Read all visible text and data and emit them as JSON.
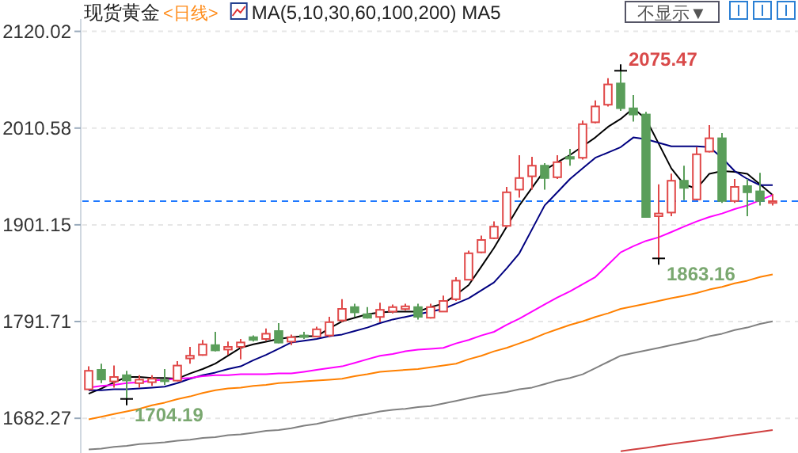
{
  "chart_data": {
    "type": "candlestick",
    "title": "现货黄金",
    "subtitle": "<日线>",
    "categories": [
      null,
      null,
      null,
      null,
      null,
      null,
      null,
      null,
      null,
      null,
      null,
      null,
      null,
      null,
      null,
      null,
      null,
      null,
      null,
      null,
      null,
      null,
      null,
      null,
      null,
      null,
      null,
      null,
      null,
      null,
      null,
      null,
      null,
      null,
      null,
      null,
      null,
      null,
      null,
      null,
      null,
      null,
      null,
      null,
      null,
      null,
      null,
      null,
      null,
      null,
      null,
      null,
      null,
      null,
      null
    ],
    "ohlc": [
      [
        1715,
        1741,
        1714,
        1736
      ],
      [
        1737,
        1744,
        1722,
        1726
      ],
      [
        1724,
        1742,
        1717,
        1729
      ],
      [
        1731,
        1736,
        1704.19,
        1725
      ],
      [
        1722,
        1731,
        1717,
        1726
      ],
      [
        1723,
        1731,
        1719,
        1727
      ],
      [
        1726,
        1738,
        1720,
        1725
      ],
      [
        1725,
        1747,
        1724,
        1742
      ],
      [
        1750,
        1763,
        1744,
        1753
      ],
      [
        1754,
        1771,
        1753,
        1766
      ],
      [
        1765,
        1780,
        1758,
        1759
      ],
      [
        1760,
        1769,
        1754,
        1763
      ],
      [
        1763,
        1772,
        1749,
        1768
      ],
      [
        1774,
        1776,
        1769,
        1771
      ],
      [
        1772,
        1784,
        1770,
        1778
      ],
      [
        1781,
        1790,
        1767,
        1768
      ],
      [
        1769,
        1777,
        1765,
        1774
      ],
      [
        1776,
        1780,
        1772,
        1775
      ],
      [
        1775,
        1786,
        1774,
        1783
      ],
      [
        1776,
        1797,
        1774,
        1791
      ],
      [
        1793,
        1817,
        1791,
        1806
      ],
      [
        1808,
        1812,
        1797,
        1802
      ],
      [
        1800,
        1808,
        1795,
        1796
      ],
      [
        1797,
        1813,
        1791,
        1805
      ],
      [
        1803,
        1811,
        1801,
        1808
      ],
      [
        1806,
        1812,
        1804,
        1809
      ],
      [
        1808,
        1812,
        1794,
        1797
      ],
      [
        1796,
        1812,
        1795,
        1808
      ],
      [
        1803,
        1821,
        1803,
        1815
      ],
      [
        1817,
        1842,
        1815,
        1838
      ],
      [
        1839,
        1872,
        1839,
        1869
      ],
      [
        1870,
        1889,
        1869,
        1884
      ],
      [
        1886,
        1905,
        1885,
        1899
      ],
      [
        1900,
        1944,
        1898,
        1938
      ],
      [
        1941,
        1980,
        1932,
        1954
      ],
      [
        1956,
        1978,
        1941,
        1968
      ],
      [
        1968,
        1971,
        1941,
        1954
      ],
      [
        1955,
        1980,
        1953,
        1972
      ],
      [
        1978,
        1987,
        1968,
        1976
      ],
      [
        1977,
        2019,
        1975,
        2015
      ],
      [
        2017,
        2042,
        2016,
        2035
      ],
      [
        2037,
        2067,
        2035,
        2060
      ],
      [
        2061,
        2075.47,
        2030,
        2033
      ],
      [
        2033,
        2048,
        2018,
        2026
      ],
      [
        2026,
        2029,
        1909,
        1910
      ],
      [
        1911,
        1947,
        1863.16,
        1914
      ],
      [
        1915,
        1959,
        1911,
        1951
      ],
      [
        1951,
        1968,
        1929,
        1943
      ],
      [
        1930,
        1989,
        1929,
        1981
      ],
      [
        1984,
        2014,
        1983,
        1999
      ],
      [
        1999,
        2005,
        1926,
        1928
      ],
      [
        1928,
        1953,
        1926,
        1944
      ],
      [
        1945,
        1953,
        1911,
        1938
      ],
      [
        1939,
        1960,
        1923,
        1928
      ],
      [
        1926,
        1936,
        1923,
        1928
      ]
    ],
    "colors": [
      "#e04848",
      "#5a9e5a",
      "#e04848",
      "#5a9e5a",
      "#e04848",
      "#e04848",
      "#5a9e5a",
      "#e04848",
      "#e04848",
      "#e04848",
      "#5a9e5a",
      "#e04848",
      "#e04848",
      "#5a9e5a",
      "#e04848",
      "#5a9e5a",
      "#e04848",
      "#5a9e5a",
      "#e04848",
      "#e04848",
      "#e04848",
      "#5a9e5a",
      "#5a9e5a",
      "#e04848",
      "#e04848",
      "#e04848",
      "#5a9e5a",
      "#e04848",
      "#e04848",
      "#e04848",
      "#e04848",
      "#e04848",
      "#e04848",
      "#e04848",
      "#e04848",
      "#e04848",
      "#5a9e5a",
      "#e04848",
      "#5a9e5a",
      "#e04848",
      "#e04848",
      "#e04848",
      "#5a9e5a",
      "#5a9e5a",
      "#5a9e5a",
      "#e04848",
      "#e04848",
      "#5a9e5a",
      "#e04848",
      "#e04848",
      "#5a9e5a",
      "#e04848",
      "#5a9e5a",
      "#5a9e5a",
      "#e04848"
    ],
    "series": [
      {
        "type": "line",
        "color": "#000000",
        "values": [
          1710,
          1716,
          1723,
          1729,
          1729,
          1728,
          1728,
          1727,
          1733,
          1738,
          1744,
          1753,
          1762,
          1766,
          1769,
          1772,
          1774,
          1775,
          1775,
          1784,
          1792,
          1796,
          1800,
          1802,
          1803,
          1803,
          1803,
          1808,
          1812,
          1822,
          1833,
          1854,
          1875,
          1899,
          1923,
          1943,
          1963,
          1972,
          1980,
          1990,
          2000,
          2012,
          2021,
          2033,
          2021,
          1993,
          1965,
          1947,
          1942,
          1959,
          1962,
          1961,
          1959,
          1947,
          1935
        ]
      },
      {
        "type": "line",
        "color": "#000080",
        "values": [
          1714,
          1714,
          1715,
          1715,
          1716,
          1717,
          1718,
          1722,
          1727,
          1731,
          1734,
          1738,
          1741,
          1748,
          1754,
          1761,
          1768,
          1770,
          1772,
          1775,
          1777,
          1781,
          1785,
          1790,
          1794,
          1797,
          1800,
          1803,
          1806,
          1812,
          1818,
          1827,
          1836,
          1852,
          1869,
          1896,
          1923,
          1938,
          1953,
          1965,
          1977,
          1983,
          1989,
          2000,
          1998,
          1994,
          1990,
          1990,
          1990,
          1989,
          1977,
          1962,
          1953,
          1946,
          1946
        ]
      },
      {
        "type": "line",
        "color": "#ff00ff",
        "values": [
          1717,
          1719,
          1720,
          1722,
          1723,
          1725,
          1726,
          1727,
          1728,
          1730,
          1731,
          1731,
          1732,
          1732,
          1732,
          1733,
          1733,
          1735,
          1737,
          1739,
          1741,
          1745,
          1749,
          1753,
          1755,
          1758,
          1760,
          1761,
          1762,
          1767,
          1771,
          1776,
          1780,
          1788,
          1795,
          1803,
          1811,
          1819,
          1826,
          1834,
          1842,
          1856,
          1870,
          1877,
          1883,
          1887,
          1893,
          1899,
          1905,
          1910,
          1914,
          1919,
          1923,
          1929,
          1935
        ]
      },
      {
        "type": "line",
        "color": "#ff8000",
        "values": [
          1681,
          1684,
          1687,
          1690,
          1693,
          1697,
          1700,
          1704,
          1707,
          1711,
          1714,
          1716,
          1717,
          1719,
          1720,
          1722,
          1723,
          1724,
          1725,
          1726,
          1727,
          1730,
          1732,
          1735,
          1736,
          1737,
          1738,
          1740,
          1742,
          1744,
          1749,
          1753,
          1758,
          1762,
          1767,
          1772,
          1778,
          1783,
          1788,
          1792,
          1797,
          1801,
          1806,
          1809,
          1812,
          1815,
          1818,
          1821,
          1824,
          1828,
          1831,
          1835,
          1838,
          1842,
          1845
        ]
      },
      {
        "type": "line",
        "color": "#808080",
        "values": [
          1647,
          1648,
          1650,
          1651,
          1653,
          1654,
          1655,
          1657,
          1658,
          1660,
          1661,
          1663,
          1664,
          1666,
          1668,
          1669,
          1671,
          1674,
          1676,
          1679,
          1682,
          1685,
          1687,
          1690,
          1692,
          1693,
          1695,
          1696,
          1699,
          1702,
          1705,
          1708,
          1710,
          1712,
          1715,
          1717,
          1721,
          1725,
          1728,
          1732,
          1739,
          1746,
          1753,
          1756,
          1759,
          1762,
          1765,
          1768,
          1771,
          1775,
          1778,
          1782,
          1785,
          1789,
          1792
        ]
      },
      {
        "type": "line",
        "color": "#d04040",
        "values": [
          null,
          null,
          null,
          null,
          null,
          null,
          null,
          null,
          null,
          null,
          null,
          null,
          null,
          null,
          null,
          null,
          null,
          null,
          null,
          null,
          null,
          null,
          null,
          null,
          null,
          null,
          null,
          null,
          null,
          null,
          null,
          null,
          null,
          null,
          null,
          null,
          null,
          null,
          null,
          null,
          null,
          null,
          1645,
          1647,
          1649,
          1651,
          1653,
          1655,
          1657,
          1659,
          1661,
          1663,
          1665,
          1667,
          1669
        ]
      }
    ],
    "ylim": [
      1643,
      2134
    ],
    "yticks": [
      1682.27,
      1791.71,
      1901.15,
      2010.58,
      2120.02
    ],
    "grid": "y",
    "ref_lines": [
      {
        "axis": "y",
        "value": 1928,
        "color": "#1e78ff",
        "line_style": "dashed"
      }
    ],
    "annotations": [
      "MA(5,10,30,60,100,200) MA5",
      "不显示▼",
      "2075.47",
      "1863.16",
      "1704.19"
    ]
  }
}
